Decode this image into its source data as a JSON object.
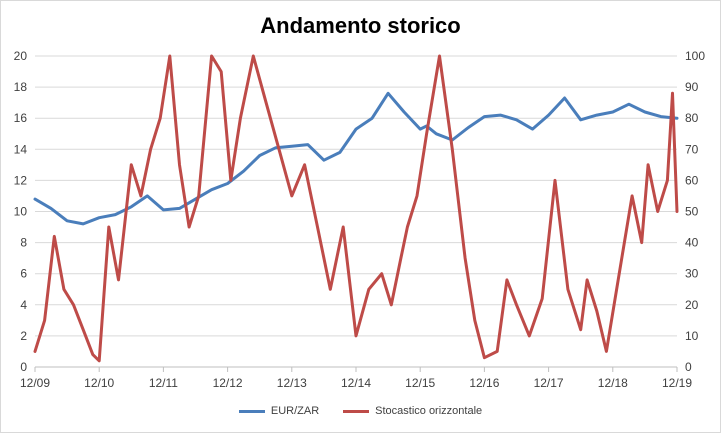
{
  "chart_data": {
    "type": "line",
    "title": "Andamento storico",
    "x_tick_labels": [
      "12/09",
      "12/10",
      "12/11",
      "12/12",
      "12/13",
      "12/14",
      "12/15",
      "12/16",
      "12/17",
      "12/18",
      "12/19"
    ],
    "y_left": {
      "min": 0,
      "max": 20,
      "step": 2
    },
    "y_right": {
      "min": 0,
      "max": 100,
      "step": 10
    },
    "grid": true,
    "legend_position": "bottom",
    "series": [
      {
        "name": "EUR/ZAR",
        "axis": "left",
        "color": "#4a7ebb",
        "x": [
          0,
          0.25,
          0.5,
          0.75,
          1,
          1.25,
          1.5,
          1.75,
          2,
          2.25,
          2.5,
          2.75,
          3,
          3.25,
          3.5,
          3.75,
          4,
          4.25,
          4.5,
          4.75,
          5,
          5.25,
          5.5,
          5.75,
          6,
          6.1,
          6.25,
          6.5,
          6.75,
          7,
          7.25,
          7.5,
          7.75,
          8,
          8.25,
          8.5,
          8.75,
          9,
          9.25,
          9.5,
          9.75,
          10
        ],
        "y": [
          10.8,
          10.2,
          9.4,
          9.2,
          9.6,
          9.8,
          10.3,
          11.0,
          10.1,
          10.2,
          10.8,
          11.4,
          11.8,
          12.6,
          13.6,
          14.1,
          14.2,
          14.3,
          13.3,
          13.8,
          15.3,
          16.0,
          17.6,
          16.4,
          15.3,
          15.5,
          15.0,
          14.6,
          15.4,
          16.1,
          16.2,
          15.9,
          15.3,
          16.2,
          17.3,
          15.9,
          16.2,
          16.4,
          16.9,
          16.4,
          16.1,
          16.0
        ]
      },
      {
        "name": "Stocastico orizzontale",
        "axis": "right",
        "color": "#be4b48",
        "x": [
          0,
          0.15,
          0.3,
          0.45,
          0.6,
          0.75,
          0.9,
          1.0,
          1.15,
          1.3,
          1.5,
          1.65,
          1.8,
          1.95,
          2.1,
          2.25,
          2.4,
          2.55,
          2.75,
          2.9,
          3.05,
          3.2,
          3.4,
          3.6,
          3.8,
          4.0,
          4.2,
          4.4,
          4.6,
          4.8,
          5.0,
          5.2,
          5.4,
          5.55,
          5.7,
          5.8,
          5.95,
          6.1,
          6.3,
          6.5,
          6.7,
          6.85,
          7.0,
          7.2,
          7.35,
          7.5,
          7.7,
          7.9,
          8.1,
          8.3,
          8.5,
          8.6,
          8.75,
          8.9,
          9.1,
          9.3,
          9.45,
          9.55,
          9.7,
          9.85,
          9.93,
          10
        ],
        "y": [
          5,
          15,
          42,
          25,
          20,
          12,
          4,
          2,
          45,
          28,
          65,
          55,
          70,
          80,
          100,
          65,
          45,
          55,
          100,
          95,
          60,
          80,
          100,
          85,
          70,
          55,
          65,
          45,
          25,
          45,
          10,
          25,
          30,
          20,
          35,
          45,
          55,
          75,
          100,
          70,
          35,
          15,
          3,
          5,
          28,
          20,
          10,
          22,
          60,
          25,
          12,
          28,
          18,
          5,
          30,
          55,
          40,
          65,
          50,
          60,
          88,
          50
        ]
      }
    ]
  }
}
